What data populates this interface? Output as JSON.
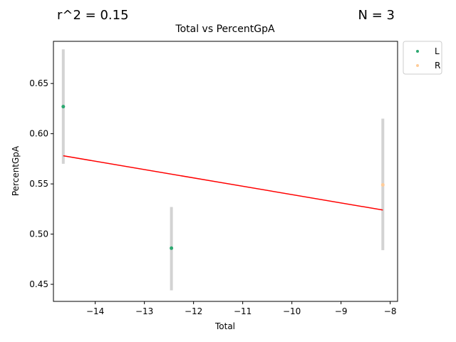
{
  "annotations": {
    "r2_text": "r^2 = 0.15",
    "n_text": "N = 3"
  },
  "chart_data": {
    "type": "scatter",
    "title": "Total vs PercentGpA",
    "xlabel": "Total",
    "ylabel": "PercentGpA",
    "xlim": [
      -14.85,
      -7.85
    ],
    "ylim": [
      0.433,
      0.692
    ],
    "xticks": [
      -14,
      -13,
      -12,
      -11,
      -10,
      -9,
      -8
    ],
    "xtick_labels": [
      "−14",
      "−13",
      "−12",
      "−11",
      "−10",
      "−9",
      "−8"
    ],
    "yticks": [
      0.45,
      0.5,
      0.55,
      0.6,
      0.65
    ],
    "ytick_labels": [
      "0.45",
      "0.50",
      "0.55",
      "0.60",
      "0.65"
    ],
    "grid": false,
    "legend_position": "outside-top-right",
    "series": [
      {
        "name": "L",
        "color": "#2ca870",
        "points": [
          {
            "x": -14.65,
            "y": 0.627,
            "ymin": 0.57,
            "ymax": 0.684
          },
          {
            "x": -12.45,
            "y": 0.486,
            "ymin": 0.444,
            "ymax": 0.527
          }
        ]
      },
      {
        "name": "R",
        "color": "#ffcc99",
        "points": [
          {
            "x": -8.15,
            "y": 0.549,
            "ymin": 0.484,
            "ymax": 0.615
          }
        ]
      }
    ],
    "trendline": {
      "color": "#ff0000",
      "x": [
        -14.65,
        -8.15
      ],
      "y": [
        0.578,
        0.524
      ]
    },
    "errorbar_color": "#d3d3d3"
  }
}
